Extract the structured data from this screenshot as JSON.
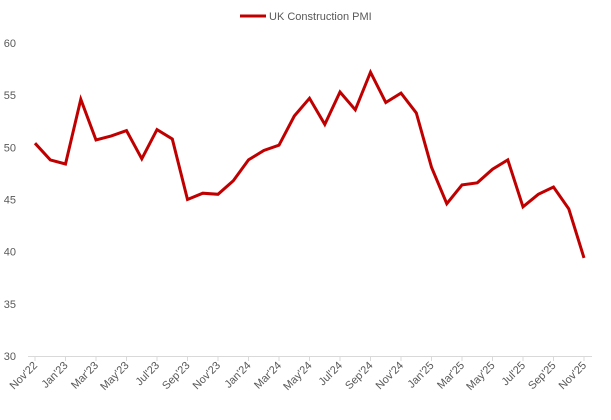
{
  "chart_data": {
    "type": "line",
    "title": "",
    "xlabel": "",
    "ylabel": "",
    "ylim": [
      30,
      60
    ],
    "yticks": [
      30,
      35,
      40,
      45,
      50,
      55,
      60
    ],
    "grid": false,
    "legend_position": "top-center",
    "x": [
      "Nov'22",
      "Dec'22",
      "Jan'23",
      "Feb'23",
      "Mar'23",
      "Apr'23",
      "May'23",
      "Jun'23",
      "Jul'23",
      "Aug'23",
      "Sep'23",
      "Oct'23",
      "Nov'23",
      "Dec'23",
      "Jan'24",
      "Feb'24",
      "Mar'24",
      "Apr'24",
      "May'24",
      "Jun'24",
      "Jul'24",
      "Aug'24",
      "Sep'24",
      "Oct'24",
      "Nov'24",
      "Dec'24",
      "Jan'25",
      "Feb'25",
      "Mar'25",
      "Apr'25",
      "May'25",
      "Jun'25",
      "Jul'25",
      "Aug'25",
      "Sep'25",
      "Oct'25",
      "Nov'25"
    ],
    "xtick_labels": [
      "Nov'22",
      "Jan'23",
      "Mar'23",
      "May'23",
      "Jul'23",
      "Sep'23",
      "Nov'23",
      "Jan'24",
      "Mar'24",
      "May'24",
      "Jul'24",
      "Sep'24",
      "Nov'24",
      "Jan'25",
      "Mar'25",
      "May'25",
      "Jul'25",
      "Sep'25",
      "Nov'25"
    ],
    "series": [
      {
        "name": "UK Construction PMI",
        "color": "#C00000",
        "values": [
          50.4,
          48.8,
          48.4,
          54.6,
          50.7,
          51.1,
          51.6,
          48.9,
          51.7,
          50.8,
          45.0,
          45.6,
          45.5,
          46.8,
          48.8,
          49.7,
          50.2,
          53.0,
          54.7,
          52.2,
          55.3,
          53.6,
          57.2,
          54.3,
          55.2,
          53.3,
          48.1,
          44.6,
          46.4,
          46.6,
          47.9,
          48.8,
          44.3,
          45.5,
          46.2,
          44.1,
          39.4
        ]
      }
    ]
  }
}
